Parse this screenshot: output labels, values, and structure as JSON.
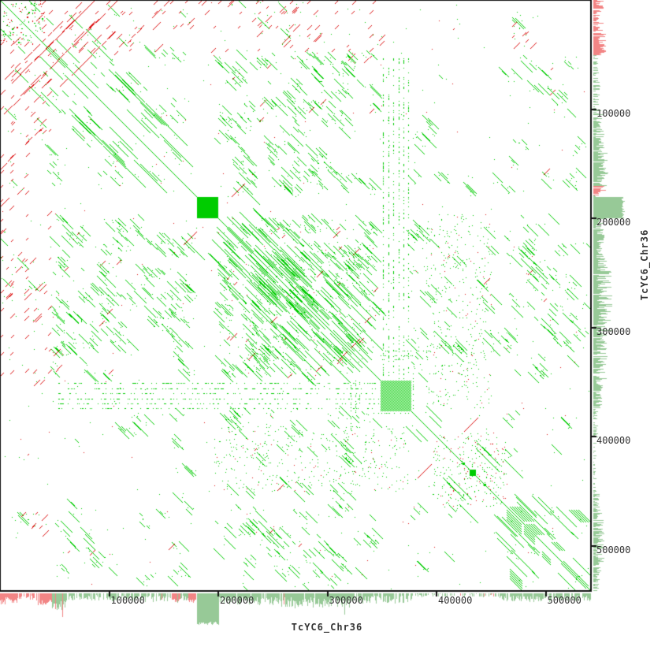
{
  "chart_data": {
    "type": "scatter",
    "subtype": "genomic-self-dotplot",
    "title": "",
    "xlabel": "TcYC6_Chr36",
    "ylabel": "TcYC6_Chr36",
    "sequence_length_bp": 541500,
    "xlim": [
      0,
      541500
    ],
    "ylim": [
      0,
      541500
    ],
    "grid": false,
    "legend": "none",
    "x_ticks": [
      {
        "value": 100000,
        "label": "100000"
      },
      {
        "value": 200000,
        "label": "200000"
      },
      {
        "value": 300000,
        "label": "300000"
      },
      {
        "value": 400000,
        "label": "400000"
      },
      {
        "value": 500000,
        "label": "500000"
      }
    ],
    "y_ticks": [
      {
        "value": 100000,
        "label": "100000"
      },
      {
        "value": 200000,
        "label": "200000"
      },
      {
        "value": 300000,
        "label": "300000"
      },
      {
        "value": 400000,
        "label": "400000"
      },
      {
        "value": 500000,
        "label": "500000"
      }
    ],
    "colors": {
      "forward": "#00CC00",
      "reverse": "#DD1111",
      "margin_forward": "#97C997",
      "margin_reverse": "#F28585",
      "axis": "#111111",
      "label": "#333333",
      "background": "#FFFFFF"
    },
    "features": {
      "main_diagonal": {
        "from": 0,
        "to": 541500,
        "color": "forward"
      },
      "diagonal_blocks": [
        {
          "start": 180500,
          "end": 200000,
          "fill": "solid"
        },
        {
          "start": 349000,
          "end": 376500,
          "fill": "hatch"
        },
        {
          "start": 430000,
          "end": 436000,
          "fill": "solid"
        },
        {
          "start": 424000,
          "end": 426500,
          "fill": "solid"
        },
        {
          "start": 443500,
          "end": 445500,
          "fill": "solid"
        }
      ],
      "start_repeats": {
        "extent": 115000,
        "fwd_offsets": [
          {
            "off": 26000,
            "cov": 0.78,
            "len": 112000
          },
          {
            "off": 52000,
            "cov": 0.35,
            "len": 80000
          }
        ],
        "rev_lines": [
          {
            "c": 76500,
            "x0": 7000,
            "x1": 72000,
            "cov": 0.7
          },
          {
            "c": 86500,
            "x0": 0,
            "x1": 86500,
            "cov": 0.75
          },
          {
            "c": 108000,
            "x0": 22000,
            "x1": 108000,
            "cov": 0.65
          },
          {
            "c": 134000,
            "x0": 20000,
            "x1": 114000,
            "cov": 0.5
          },
          {
            "c": 155000,
            "x0": 105000,
            "x1": 155000,
            "cov": 0.45
          },
          {
            "c": 167000,
            "x0": 140000,
            "x1": 167000,
            "cov": 0.4
          },
          {
            "c": 189000,
            "x0": 142000,
            "x1": 189000,
            "cov": 0.35
          }
        ]
      },
      "tandem_array": {
        "start": 349000,
        "end": 376500,
        "stripes": 6,
        "stripe_span": [
          52000,
          347000
        ],
        "cov": 0.3
      },
      "flank_lines": [
        {
          "y": 321500,
          "x0": 349000,
          "x1": 394000
        },
        {
          "y": 325500,
          "x0": 349000,
          "x1": 383000
        },
        {
          "y": 329500,
          "x0": 349000,
          "x1": 370000
        },
        {
          "y": 378500,
          "x0": 335000,
          "x1": 377000
        }
      ],
      "edge_reverse_columns": {
        "cols": [
          1500,
          11000,
          24500,
          45500
        ],
        "span": [
          40000,
          345000
        ]
      },
      "noise_blocks": [
        {
          "x": [
            195000,
            375000
          ],
          "y": [
            390000,
            450000
          ],
          "n": 380,
          "rf": 0.12,
          "mirror": true
        },
        {
          "x": [
            396000,
            464000
          ],
          "y": [
            396000,
            464000
          ],
          "n": 280,
          "rf": 0.3,
          "mirror": false
        },
        {
          "x": [
            0,
            541500
          ],
          "y": [
            0,
            541500
          ],
          "n": 200,
          "rf": 0.15,
          "mirror": true
        }
      ],
      "end_clusters": [
        {
          "x": 467200,
          "y": 464300,
          "n": 5,
          "sp": 2200,
          "len": 13000
        },
        {
          "x": 482400,
          "y": 480200,
          "n": 4,
          "sp": 2200,
          "len": 10000
        },
        {
          "x": 521300,
          "y": 467200,
          "n": 5,
          "sp": 2200,
          "len": 11000
        },
        {
          "x": 505400,
          "y": 496700,
          "n": 3,
          "sp": 2200,
          "len": 7500
        }
      ],
      "repeat_cluster_positions": [
        {
          "bp": 5800,
          "w": 0.36,
          "rp": 1
        },
        {
          "bp": 15900,
          "w": 0.34,
          "rp": 1
        },
        {
          "bp": 26000,
          "w": 0.34,
          "rp": 1
        },
        {
          "bp": 36100,
          "w": 0.3,
          "rp": 1
        },
        {
          "bp": 49100,
          "w": 0.5
        },
        {
          "bp": 56300,
          "w": 0.52
        },
        {
          "bp": 63500,
          "w": 0.48
        },
        {
          "bp": 72200,
          "w": 0.44
        },
        {
          "bp": 80900,
          "w": 0.5
        },
        {
          "bp": 89500,
          "w": 0.48
        },
        {
          "bp": 98200,
          "w": 0.44
        },
        {
          "bp": 106900,
          "w": 0.4
        },
        {
          "bp": 115500,
          "w": 0.46
        },
        {
          "bp": 124200,
          "w": 0.5
        },
        {
          "bp": 133600,
          "w": 0.48
        },
        {
          "bp": 143000,
          "w": 0.42
        },
        {
          "bp": 153100,
          "w": 0.46
        },
        {
          "bp": 163200,
          "w": 0.44
        },
        {
          "bp": 173300,
          "w": 0.42
        },
        {
          "bp": 205000,
          "w": 0.62
        },
        {
          "bp": 210800,
          "w": 0.68
        },
        {
          "bp": 216600,
          "w": 0.64
        },
        {
          "bp": 222400,
          "w": 0.66
        },
        {
          "bp": 228200,
          "w": 0.7
        },
        {
          "bp": 234000,
          "w": 0.64
        },
        {
          "bp": 239700,
          "w": 0.66
        },
        {
          "bp": 245500,
          "w": 0.7
        },
        {
          "bp": 251300,
          "w": 0.64
        },
        {
          "bp": 257100,
          "w": 0.66
        },
        {
          "bp": 262800,
          "w": 0.7
        },
        {
          "bp": 268600,
          "w": 0.64
        },
        {
          "bp": 274400,
          "w": 0.66
        },
        {
          "bp": 280100,
          "w": 0.68
        },
        {
          "bp": 285900,
          "w": 0.64
        },
        {
          "bp": 291700,
          "w": 0.66
        },
        {
          "bp": 297500,
          "w": 0.68
        },
        {
          "bp": 303200,
          "w": 0.64
        },
        {
          "bp": 309000,
          "w": 0.66
        },
        {
          "bp": 314800,
          "w": 0.68
        },
        {
          "bp": 320600,
          "w": 0.62
        },
        {
          "bp": 326300,
          "w": 0.62
        },
        {
          "bp": 332100,
          "w": 0.58
        },
        {
          "bp": 337900,
          "w": 0.58
        },
        {
          "bp": 343700,
          "w": 0.54
        },
        {
          "bp": 382700,
          "w": 0.26
        },
        {
          "bp": 393500,
          "w": 0.22
        },
        {
          "bp": 405800,
          "w": 0.16
        },
        {
          "bp": 417300,
          "w": 0.16
        },
        {
          "bp": 428900,
          "w": 0.16
        },
        {
          "bp": 440400,
          "w": 0.16
        },
        {
          "bp": 451300,
          "w": 0.18
        },
        {
          "bp": 467900,
          "w": 0.48
        },
        {
          "bp": 476500,
          "w": 0.52
        },
        {
          "bp": 485200,
          "w": 0.5
        },
        {
          "bp": 493800,
          "w": 0.46
        },
        {
          "bp": 502500,
          "w": 0.42
        },
        {
          "bp": 512600,
          "w": 0.3
        },
        {
          "bp": 522700,
          "w": 0.28
        },
        {
          "bp": 532900,
          "w": 0.26
        }
      ]
    },
    "margins": {
      "right": [
        {
          "r": [
            0,
            30000
          ],
          "c": "reverse",
          "min": 3,
          "max": 13,
          "d": 0.85
        },
        {
          "r": [
            30000,
            50000
          ],
          "c": "reverse",
          "min": 6,
          "max": 17,
          "d": 0.9
        },
        {
          "r": [
            50000,
            72000
          ],
          "c": "forward",
          "min": 1,
          "max": 7,
          "d": 0.55
        },
        {
          "r": [
            72000,
            101000
          ],
          "c": "forward",
          "min": 2,
          "max": 9,
          "d": 0.7
        },
        {
          "r": [
            101000,
            140000
          ],
          "c": "forward",
          "min": 3,
          "max": 14,
          "d": 0.85
        },
        {
          "r": [
            140000,
            170000
          ],
          "c": "forward",
          "min": 4,
          "max": 19,
          "d": 0.9
        },
        {
          "r": [
            170000,
            178500
          ],
          "c": "reverse",
          "min": 4,
          "max": 14,
          "d": 0.9
        },
        {
          "r": [
            178500,
            180500
          ],
          "c": "forward",
          "min": 2,
          "max": 8,
          "d": 0.8
        },
        {
          "r": [
            180500,
            199500
          ],
          "c": "forward",
          "min": 36,
          "max": 40,
          "d": 1,
          "solid": 1
        },
        {
          "r": [
            199500,
            238000
          ],
          "c": "forward",
          "min": 3,
          "max": 15,
          "d": 0.9
        },
        {
          "r": [
            238000,
            305000
          ],
          "c": "forward",
          "min": 4,
          "max": 24,
          "d": 0.95
        },
        {
          "r": [
            305000,
            347000
          ],
          "c": "forward",
          "min": 3,
          "max": 18,
          "d": 0.9
        },
        {
          "r": [
            347000,
            377000
          ],
          "c": "forward",
          "min": 2,
          "max": 12,
          "d": 0.85
        },
        {
          "r": [
            377000,
            400000
          ],
          "c": "forward",
          "min": 1,
          "max": 6,
          "d": 0.55
        },
        {
          "r": [
            400000,
            452000
          ],
          "c": "forward",
          "min": 1,
          "max": 4,
          "d": 0.3
        },
        {
          "r": [
            452000,
            470000
          ],
          "c": "forward",
          "min": 2,
          "max": 9,
          "d": 0.7
        },
        {
          "r": [
            470000,
            515000
          ],
          "c": "forward",
          "min": 3,
          "max": 14,
          "d": 0.85
        },
        {
          "r": [
            515000,
            541500
          ],
          "c": "forward",
          "min": 2,
          "max": 10,
          "d": 0.75
        }
      ],
      "right_spikes": [
        {
          "pos": 174000,
          "len": 16,
          "c": "reverse"
        }
      ],
      "bottom": [
        {
          "r": [
            0,
            16000
          ],
          "c": "reverse",
          "min": 5,
          "max": 14,
          "d": 0.95
        },
        {
          "r": [
            16000,
            33000
          ],
          "c": "reverse",
          "min": 2,
          "max": 8,
          "d": 0.6
        },
        {
          "r": [
            33000,
            47000
          ],
          "c": "reverse",
          "min": 7,
          "max": 16,
          "d": 0.9
        },
        {
          "r": [
            47000,
            62000
          ],
          "c": "forward",
          "min": 8,
          "max": 22,
          "d": 0.95,
          "rf": 0.15
        },
        {
          "r": [
            62000,
            101000
          ],
          "c": "forward",
          "min": 2,
          "max": 9,
          "d": 0.7
        },
        {
          "r": [
            101000,
            144000
          ],
          "c": "forward",
          "min": 3,
          "max": 11,
          "d": 0.8
        },
        {
          "r": [
            144000,
            151000
          ],
          "c": "forward",
          "min": 3,
          "max": 10,
          "d": 0.85,
          "rf": 0.3
        },
        {
          "r": [
            151000,
            156000
          ],
          "c": "forward",
          "min": 3,
          "max": 10,
          "d": 0.8
        },
        {
          "r": [
            156000,
            165000
          ],
          "c": "reverse",
          "min": 5,
          "max": 14,
          "d": 0.9,
          "rf": 0.2
        },
        {
          "r": [
            165000,
            172000
          ],
          "c": "forward",
          "min": 3,
          "max": 10,
          "d": 0.8
        },
        {
          "r": [
            172000,
            179500
          ],
          "c": "reverse",
          "min": 5,
          "max": 12,
          "d": 0.9
        },
        {
          "r": [
            180500,
            200000
          ],
          "c": "forward",
          "min": 36,
          "max": 40,
          "d": 1,
          "solid": 1
        },
        {
          "r": [
            200000,
            253000
          ],
          "c": "forward",
          "min": 4,
          "max": 15,
          "d": 0.9
        },
        {
          "r": [
            253000,
            320000
          ],
          "c": "forward",
          "min": 4,
          "max": 19,
          "d": 0.95,
          "rf": 0.02
        },
        {
          "r": [
            320000,
            377000
          ],
          "c": "forward",
          "min": 3,
          "max": 13,
          "d": 0.85
        },
        {
          "r": [
            377000,
            400000
          ],
          "c": "forward",
          "min": 1,
          "max": 5,
          "d": 0.5
        },
        {
          "r": [
            400000,
            455000
          ],
          "c": "forward",
          "min": 1,
          "max": 5,
          "d": 0.35,
          "rf": 0.08
        },
        {
          "r": [
            455000,
            541500
          ],
          "c": "forward",
          "min": 3,
          "max": 11,
          "d": 0.75
        }
      ],
      "bottom_spikes": [
        {
          "pos": 57000,
          "len": 30,
          "c": "reverse"
        },
        {
          "pos": 52000,
          "len": 20,
          "c": "forward"
        },
        {
          "pos": 315500,
          "len": 27,
          "c": "forward"
        }
      ]
    }
  }
}
